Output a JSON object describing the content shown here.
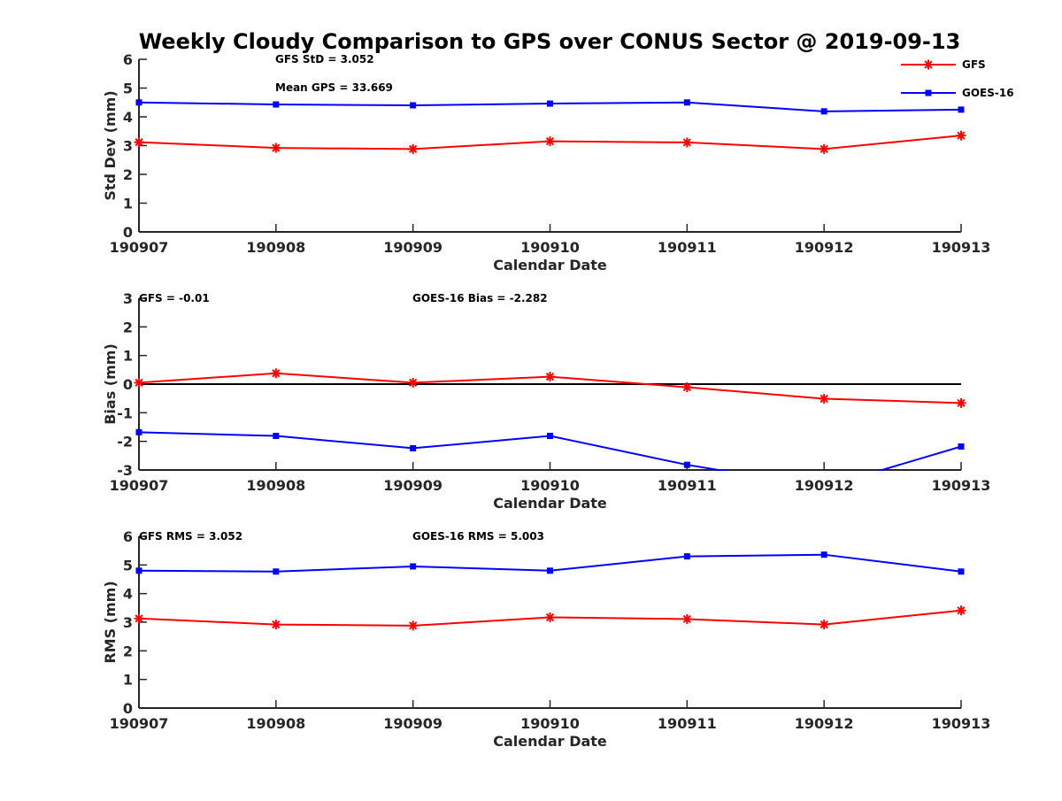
{
  "chart_data": {
    "title": "Weekly Cloudy Comparison to GPS over CONUS Sector @ 2019-09-13",
    "legend": {
      "placement": "top-right",
      "entries": [
        "GFS",
        "GOES-16"
      ]
    },
    "colors": {
      "GFS": "#ff0000",
      "GOES-16": "#0000ff",
      "zero_line": "#000000",
      "axes": "#262626"
    },
    "panels": [
      {
        "type": "line",
        "xlabel": "Calendar Date",
        "ylabel": "Std Dev (mm)",
        "categories": [
          "190907",
          "190908",
          "190909",
          "190910",
          "190911",
          "190912",
          "190913"
        ],
        "ylim": [
          0,
          6
        ],
        "yticks": [
          "0",
          "1",
          "2",
          "3",
          "4",
          "5",
          "6"
        ],
        "grid": false,
        "annotations": [
          "GFS StD = 3.052",
          "Mean GPS = 33.669"
        ],
        "series": [
          {
            "name": "GFS",
            "marker": "asterisk",
            "values": [
              3.12,
              2.92,
              2.88,
              3.15,
              3.11,
              2.88,
              3.35
            ]
          },
          {
            "name": "GOES-16",
            "marker": "square",
            "values": [
              4.5,
              4.43,
              4.4,
              4.46,
              4.5,
              4.19,
              4.25
            ]
          }
        ]
      },
      {
        "type": "line",
        "xlabel": "Calendar Date",
        "ylabel": "Bias (mm)",
        "categories": [
          "190907",
          "190908",
          "190909",
          "190910",
          "190911",
          "190912",
          "190913"
        ],
        "ylim": [
          -3,
          3
        ],
        "yticks": [
          "-3",
          "-2",
          "-1",
          "0",
          "1",
          "2",
          "3"
        ],
        "grid": false,
        "zero_line": true,
        "annotations": [
          "GFS = -0.01",
          "GOES-16 Bias  = -2.282"
        ],
        "series": [
          {
            "name": "GFS",
            "marker": "asterisk",
            "values": [
              0.05,
              0.38,
              0.05,
              0.26,
              -0.11,
              -0.51,
              -0.66
            ]
          },
          {
            "name": "GOES-16",
            "marker": "square",
            "values": [
              -1.68,
              -1.81,
              -2.24,
              -1.81,
              -2.82,
              -3.6,
              -2.18
            ]
          }
        ]
      },
      {
        "type": "line",
        "xlabel": "Calendar Date",
        "ylabel": "RMS (mm)",
        "categories": [
          "190907",
          "190908",
          "190909",
          "190910",
          "190911",
          "190912",
          "190913"
        ],
        "ylim": [
          0,
          6
        ],
        "yticks": [
          "0",
          "1",
          "2",
          "3",
          "4",
          "5",
          "6"
        ],
        "grid": false,
        "annotations": [
          "GFS RMS = 3.052",
          "GOES-16 RMS = 5.003"
        ],
        "series": [
          {
            "name": "GFS",
            "marker": "asterisk",
            "values": [
              3.13,
              2.92,
              2.88,
              3.17,
              3.11,
              2.92,
              3.41
            ]
          },
          {
            "name": "GOES-16",
            "marker": "square",
            "values": [
              4.8,
              4.77,
              4.95,
              4.8,
              5.3,
              5.36,
              4.77
            ]
          }
        ]
      }
    ]
  }
}
